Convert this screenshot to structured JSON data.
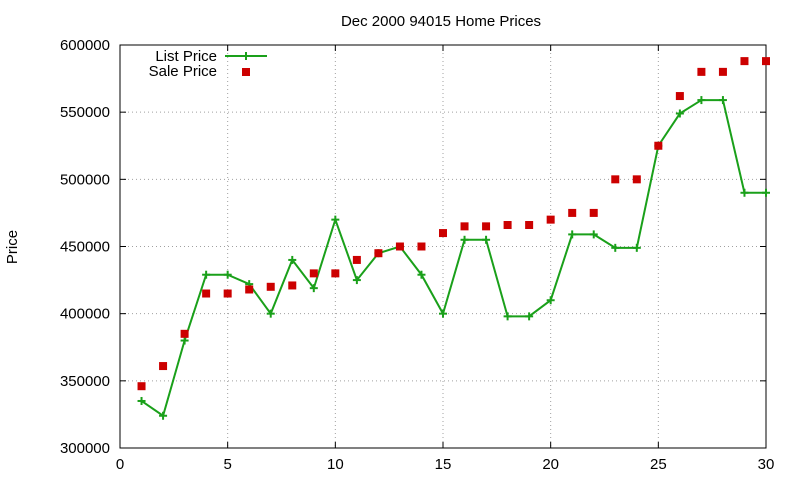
{
  "chart_data": {
    "type": "line",
    "title": "Dec 2000 94015 Home Prices",
    "xlabel": "",
    "ylabel": "Price",
    "xlim": [
      0,
      30
    ],
    "ylim": [
      300000,
      600000
    ],
    "x_ticks": [
      0,
      5,
      10,
      15,
      20,
      25,
      30
    ],
    "y_ticks": [
      300000,
      350000,
      400000,
      450000,
      500000,
      550000,
      600000
    ],
    "grid": true,
    "legend_position": "top-left",
    "series": [
      {
        "name": "List Price",
        "style": "line-with-plus-markers",
        "color": "#1aa01a",
        "x": [
          1,
          2,
          3,
          4,
          5,
          6,
          7,
          8,
          9,
          10,
          11,
          12,
          13,
          14,
          15,
          16,
          17,
          18,
          19,
          20,
          21,
          22,
          23,
          24,
          25,
          26,
          27,
          28,
          29,
          30
        ],
        "values": [
          335000,
          324000,
          380000,
          429000,
          429000,
          422000,
          400000,
          440000,
          419000,
          470000,
          425000,
          445000,
          450000,
          429000,
          400000,
          455000,
          455000,
          398000,
          398000,
          410000,
          459000,
          459000,
          449000,
          449000,
          525000,
          549000,
          559000,
          559000,
          490000,
          490000
        ]
      },
      {
        "name": "Sale Price",
        "style": "square-markers",
        "color": "#cc0000",
        "x": [
          1,
          2,
          3,
          4,
          5,
          6,
          7,
          8,
          9,
          10,
          11,
          12,
          13,
          14,
          15,
          16,
          17,
          18,
          19,
          20,
          21,
          22,
          23,
          24,
          25,
          26,
          27,
          28,
          29,
          30
        ],
        "values": [
          346000,
          361000,
          385000,
          415000,
          415000,
          418000,
          420000,
          421000,
          430000,
          430000,
          440000,
          445000,
          450000,
          450000,
          460000,
          465000,
          465000,
          466000,
          466000,
          470000,
          475000,
          475000,
          500000,
          500000,
          525000,
          562000,
          580000,
          580000,
          588000,
          588000
        ]
      }
    ]
  }
}
